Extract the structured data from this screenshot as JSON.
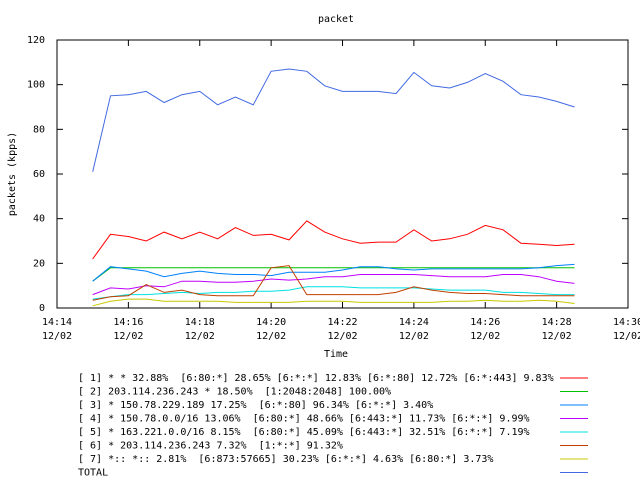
{
  "chart_data": {
    "type": "line",
    "title": "packet",
    "xlabel": "Time",
    "ylabel": "packets (kpps)",
    "x": [
      "14:15:00",
      "14:15:30",
      "14:16:00",
      "14:16:30",
      "14:17:00",
      "14:17:30",
      "14:18:00",
      "14:18:30",
      "14:19:00",
      "14:19:30",
      "14:20:00",
      "14:20:30",
      "14:21:00",
      "14:21:30",
      "14:22:00",
      "14:22:30",
      "14:23:00",
      "14:23:30",
      "14:24:00",
      "14:24:30",
      "14:25:00",
      "14:25:30",
      "14:26:00",
      "14:26:30",
      "14:27:00",
      "14:27:30",
      "14:28:00",
      "14:28:30"
    ],
    "xlim": [
      "14:14",
      "14:30"
    ],
    "xticks": [
      {
        "value": "14:14",
        "label": "14:14\n12/02"
      },
      {
        "value": "14:16",
        "label": "14:16\n12/02"
      },
      {
        "value": "14:18",
        "label": "14:18\n12/02"
      },
      {
        "value": "14:20",
        "label": "14:20\n12/02"
      },
      {
        "value": "14:22",
        "label": "14:22\n12/02"
      },
      {
        "value": "14:24",
        "label": "14:24\n12/02"
      },
      {
        "value": "14:26",
        "label": "14:26\n12/02"
      },
      {
        "value": "14:28",
        "label": "14:28\n12/02"
      },
      {
        "value": "14:30",
        "label": "14:30\n12/02"
      }
    ],
    "ylim": [
      0,
      120
    ],
    "yticks": [
      0,
      20,
      40,
      60,
      80,
      100,
      120
    ],
    "series": [
      {
        "name": "[ 1] * * 32.88%  [6:80:*] 28.65% [6:*:*] 12.83% [6:*:80] 12.72% [6:*:443] 9.83%",
        "color": "#ff0000",
        "values": [
          22,
          33,
          32,
          30,
          34,
          31,
          34,
          31,
          36,
          32.5,
          33,
          30.5,
          39,
          34,
          31,
          29,
          29.5,
          29.5,
          35,
          30,
          31,
          33,
          37,
          35,
          29,
          28.5,
          28,
          28.5
        ]
      },
      {
        "name": "[ 2] 203.114.236.243 * 18.50%  [1:2048:2048] 100.00%",
        "color": "#00c000",
        "values": [
          12,
          18,
          18,
          18,
          18,
          18,
          18,
          18,
          18,
          18,
          18,
          18,
          18,
          18,
          18,
          18,
          18,
          18,
          18,
          18,
          18,
          18,
          18,
          18,
          18,
          18,
          18,
          18
        ]
      },
      {
        "name": "[ 3] * 150.78.229.189 17.25%  [6:*:80] 96.34% [6:*:*] 3.40%",
        "color": "#0080ff",
        "values": [
          12,
          18.5,
          17.5,
          16.5,
          14,
          15.5,
          16.5,
          15.5,
          15,
          15,
          14.5,
          16,
          16,
          16,
          17,
          18.5,
          18.5,
          17.5,
          17,
          17.5,
          17.5,
          17.5,
          17.5,
          17.5,
          17.5,
          18,
          19,
          19.5
        ]
      },
      {
        "name": "[ 4] * 150.78.0.0/16 13.06%  [6:80:*] 48.66% [6:443:*] 11.73% [6:*:*] 9.99%",
        "color": "#c000ff",
        "values": [
          6,
          9,
          8.5,
          10,
          9.5,
          12,
          12,
          11.5,
          11.5,
          12,
          13,
          12.5,
          13,
          14,
          14,
          15,
          15,
          15,
          15,
          14.5,
          14,
          14,
          14,
          15,
          15,
          14,
          12,
          11
        ]
      },
      {
        "name": "[ 5] * 163.221.0.0/16 8.15%  [6:80:*] 45.09% [6:443:*] 32.51% [6:*:*] 7.19%",
        "color": "#00e0e0",
        "values": [
          4,
          5,
          6,
          6,
          6.5,
          7,
          6.5,
          7,
          7,
          7.5,
          7.5,
          8,
          9.5,
          9.5,
          9.5,
          9,
          9,
          9,
          9,
          8.5,
          8,
          8,
          8,
          7,
          7,
          6.5,
          6,
          6
        ]
      },
      {
        "name": "[ 6] * 203.114.236.243 7.32%  [1:*:*] 91.32%",
        "color": "#c04000",
        "values": [
          3.5,
          5,
          5.5,
          10.5,
          7,
          8,
          6,
          5.5,
          5.5,
          5.5,
          18,
          19,
          6,
          6,
          6,
          6,
          6,
          7,
          9.5,
          8,
          7,
          6.5,
          6.5,
          6,
          5.5,
          5.5,
          5.5,
          5.5
        ]
      },
      {
        "name": "[ 7] *:: *:: 2.81%  [6:873:57665] 30.23% [6:*:*] 4.63% [6:80:*] 3.73%",
        "color": "#c8c800",
        "values": [
          1,
          3,
          4,
          4,
          3,
          3,
          3,
          3,
          2.5,
          2.5,
          2.5,
          2.5,
          3,
          3,
          3,
          2.5,
          2.5,
          2.5,
          2.5,
          2.5,
          3,
          3,
          3.5,
          3,
          3,
          3.5,
          3,
          2
        ]
      },
      {
        "name": "TOTAL",
        "color": "#4169e1",
        "values": [
          61,
          95,
          95.5,
          97,
          92,
          95.5,
          97,
          91,
          94.5,
          91,
          106,
          107,
          106,
          99.5,
          97,
          97,
          97,
          96,
          105.5,
          99.5,
          98.5,
          101,
          105,
          101.5,
          95.5,
          94.5,
          92.5,
          90
        ]
      }
    ]
  }
}
